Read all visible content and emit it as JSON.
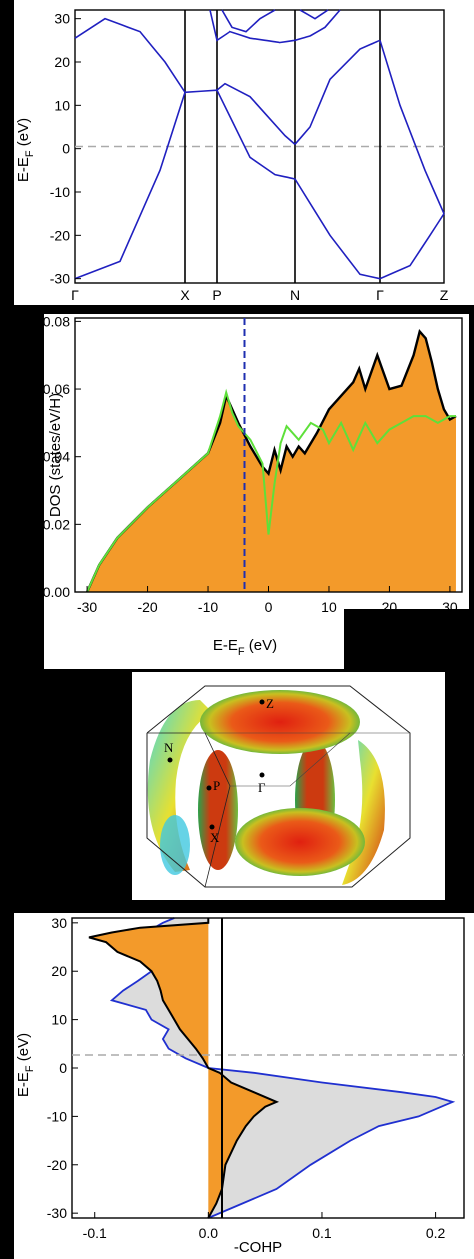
{
  "panels": {
    "band": {
      "ylabel": "E-E",
      "ylabel_sub": "F",
      "ylabel_unit": " (eV)",
      "yticks": [
        "30",
        "20",
        "10",
        "0",
        "-10",
        "-20",
        "-30"
      ],
      "kpoints": [
        "Γ",
        "X",
        "P",
        "N",
        "Γ",
        "Z"
      ]
    },
    "dos": {
      "ylabel": "DOS (states/eV/H)",
      "xlabel": "E-E",
      "xlabel_sub": "F",
      "xlabel_unit": " (eV)",
      "yticks": [
        "0.08",
        "0.06",
        "0.04",
        "0.02",
        "0.00"
      ],
      "xticks": [
        "-30",
        "-20",
        "-10",
        "0",
        "10",
        "20",
        "30"
      ]
    },
    "fermi": {
      "labels": [
        "Z",
        "N",
        "P",
        "Γ",
        "X"
      ]
    },
    "cohp": {
      "ylabel": "E-E",
      "ylabel_sub": "F",
      "ylabel_unit": " (eV)",
      "xlabel": "-COHP",
      "yticks": [
        "30",
        "20",
        "10",
        "0",
        "-10",
        "-20",
        "-30"
      ],
      "xticks": [
        "-0.1",
        "0.0",
        "0.1",
        "0.2"
      ]
    }
  },
  "chart_data": [
    {
      "type": "line",
      "title": "",
      "ylabel": "E-E_F (eV)",
      "ylim": [
        -31,
        32
      ],
      "x_kpoints": [
        "Γ",
        "X",
        "P",
        "N",
        "Γ",
        "Z"
      ],
      "series": [
        {
          "values_at_kpoints": [
            -30,
            13,
            13.5,
            -7,
            -30,
            -15
          ]
        },
        {
          "values_at_kpoints": [
            25.5,
            13,
            15,
            1,
            25,
            -15
          ]
        },
        {
          "values_at_kpoints": [
            null,
            32,
            25,
            25,
            32,
            null
          ]
        }
      ]
    },
    {
      "type": "area",
      "ylabel": "DOS (states/eV/H)",
      "xlabel": "E-E_F (eV)",
      "xlim": [
        -32,
        32
      ],
      "ylim": [
        0,
        0.081
      ],
      "series": [
        {
          "x": [
            -30,
            -28,
            -25,
            -20,
            -15,
            -10,
            -8,
            -7,
            -5,
            -3,
            -1,
            0,
            1,
            2,
            3,
            4,
            5,
            6,
            8,
            10,
            12,
            14,
            15,
            16,
            18,
            20,
            22,
            24,
            25,
            26,
            27,
            28,
            29,
            30,
            31
          ],
          "y": [
            0.0,
            0.008,
            0.016,
            0.025,
            0.033,
            0.041,
            0.05,
            0.058,
            0.05,
            0.043,
            0.037,
            0.035,
            0.042,
            0.036,
            0.043,
            0.04,
            0.043,
            0.041,
            0.047,
            0.054,
            0.058,
            0.062,
            0.066,
            0.06,
            0.07,
            0.06,
            0.061,
            0.07,
            0.077,
            0.075,
            0.068,
            0.06,
            0.054,
            0.051,
            0.052
          ]
        },
        {
          "x": [
            -30,
            -28,
            -25,
            -20,
            -15,
            -10,
            -8,
            -7,
            -6,
            -5,
            -3,
            -1,
            0,
            1,
            2,
            3,
            5,
            7,
            9,
            10,
            12,
            14,
            16,
            18,
            20,
            22,
            24,
            26,
            28,
            30,
            31
          ],
          "y": [
            0.0,
            0.008,
            0.016,
            0.025,
            0.033,
            0.041,
            0.052,
            0.059,
            0.053,
            0.049,
            0.045,
            0.038,
            0.017,
            0.032,
            0.044,
            0.049,
            0.045,
            0.05,
            0.048,
            0.044,
            0.05,
            0.042,
            0.05,
            0.044,
            0.048,
            0.05,
            0.052,
            0.052,
            0.05,
            0.052,
            0.052
          ]
        }
      ],
      "vline_x": 0
    },
    {
      "type": "area",
      "xlabel": "-COHP",
      "ylabel": "E-E_F (eV)",
      "xlim": [
        -0.12,
        0.225
      ],
      "ylim": [
        -31,
        31
      ],
      "series": [
        {
          "y": [
            -31,
            -28,
            -25,
            -20,
            -15,
            -12,
            -10,
            -8,
            -7,
            -5,
            -3,
            -1,
            0,
            2,
            4,
            6,
            8,
            10,
            12,
            14,
            16,
            18,
            20,
            22,
            24,
            26,
            27,
            28,
            29,
            30,
            31
          ],
          "x": [
            0,
            0.007,
            0.012,
            0.015,
            0.025,
            0.033,
            0.04,
            0.05,
            0.06,
            0.04,
            0.02,
            0.01,
            0.0,
            -0.005,
            -0.011,
            -0.018,
            -0.025,
            -0.03,
            -0.035,
            -0.04,
            -0.042,
            -0.045,
            -0.05,
            -0.06,
            -0.08,
            -0.09,
            -0.105,
            -0.085,
            -0.06,
            0,
            0
          ]
        },
        {
          "y": [
            -31,
            -28,
            -25,
            -20,
            -15,
            -12,
            -10,
            -8,
            -7,
            -6,
            -5,
            -3,
            -1,
            0,
            2,
            4,
            6,
            8,
            10,
            12,
            14,
            16,
            18,
            20,
            22,
            24,
            26,
            28,
            30,
            31
          ],
          "x": [
            0,
            0.03,
            0.06,
            0.09,
            0.125,
            0.15,
            0.185,
            0.205,
            0.215,
            0.2,
            0.17,
            0.1,
            0.04,
            0.0,
            -0.02,
            -0.035,
            -0.04,
            -0.035,
            -0.05,
            -0.055,
            -0.085,
            -0.075,
            -0.062,
            -0.05,
            -0.055,
            -0.06,
            -0.065,
            -0.055,
            -0.04,
            -0.03
          ]
        }
      ]
    }
  ]
}
